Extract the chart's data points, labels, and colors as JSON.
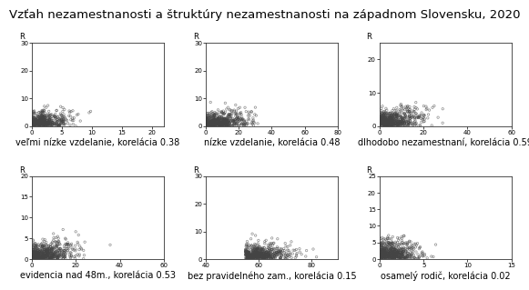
{
  "title": "Vzťah nezamestnanosti a štruktúry nezamestnanosti na západnom Slovensku, 2020",
  "subplots": [
    {
      "xlabel": "veľmi nízke vzdelanie, korelácia 0.38",
      "xlim": [
        0,
        22
      ],
      "ylim": [
        0,
        30
      ],
      "xticks": [
        0,
        5,
        10,
        15,
        20
      ],
      "yticks": [
        0,
        10,
        20,
        30
      ],
      "ylabel": "R",
      "n_points": 500,
      "corr": 0.38,
      "x_scale": 3.0,
      "y_scale": 2.5
    },
    {
      "xlabel": "nízke vzdelanie, korelácia 0.48",
      "xlim": [
        0,
        80
      ],
      "ylim": [
        0,
        30
      ],
      "xticks": [
        0,
        20,
        40,
        60,
        80
      ],
      "yticks": [
        0,
        10,
        20,
        30
      ],
      "ylabel": "R",
      "n_points": 600,
      "corr": 0.48,
      "x_scale": 12.0,
      "y_scale": 2.5
    },
    {
      "xlabel": "dlhodobo nezamestnaní, korelácia 0.59",
      "xlim": [
        0,
        60
      ],
      "ylim": [
        0,
        25
      ],
      "xticks": [
        0,
        20,
        40,
        60
      ],
      "yticks": [
        0,
        10,
        20
      ],
      "ylabel": "R",
      "n_points": 600,
      "corr": 0.59,
      "x_scale": 9.0,
      "y_scale": 2.5
    },
    {
      "xlabel": "evidencia nad 48m., korelácia 0.53",
      "xlim": [
        0,
        60
      ],
      "ylim": [
        0,
        20
      ],
      "xticks": [
        0,
        20,
        40,
        60
      ],
      "yticks": [
        0,
        5,
        10,
        15,
        20
      ],
      "ylabel": "R",
      "n_points": 600,
      "corr": 0.53,
      "x_scale": 9.0,
      "y_scale": 2.0
    },
    {
      "xlabel": "bez pravidelného zam., korelácia 0.15",
      "xlim": [
        40,
        90
      ],
      "ylim": [
        0,
        30
      ],
      "xticks": [
        40,
        60,
        80
      ],
      "yticks": [
        0,
        10,
        20,
        30
      ],
      "ylabel": "R",
      "n_points": 600,
      "corr": 0.15,
      "x_scale": 8.0,
      "y_scale": 2.5
    },
    {
      "xlabel": "osamelý rodič, korelácia 0.02",
      "xlim": [
        0,
        15
      ],
      "ylim": [
        0,
        25
      ],
      "xticks": [
        0,
        5,
        10,
        15
      ],
      "yticks": [
        0,
        5,
        10,
        15,
        20,
        25
      ],
      "ylabel": "R",
      "n_points": 600,
      "corr": 0.02,
      "x_scale": 2.0,
      "y_scale": 2.5
    }
  ],
  "marker_color": "#444444",
  "marker_size": 3,
  "alpha": 0.6,
  "bg_color": "#ffffff",
  "title_fontsize": 9.5,
  "label_fontsize": 7.0
}
